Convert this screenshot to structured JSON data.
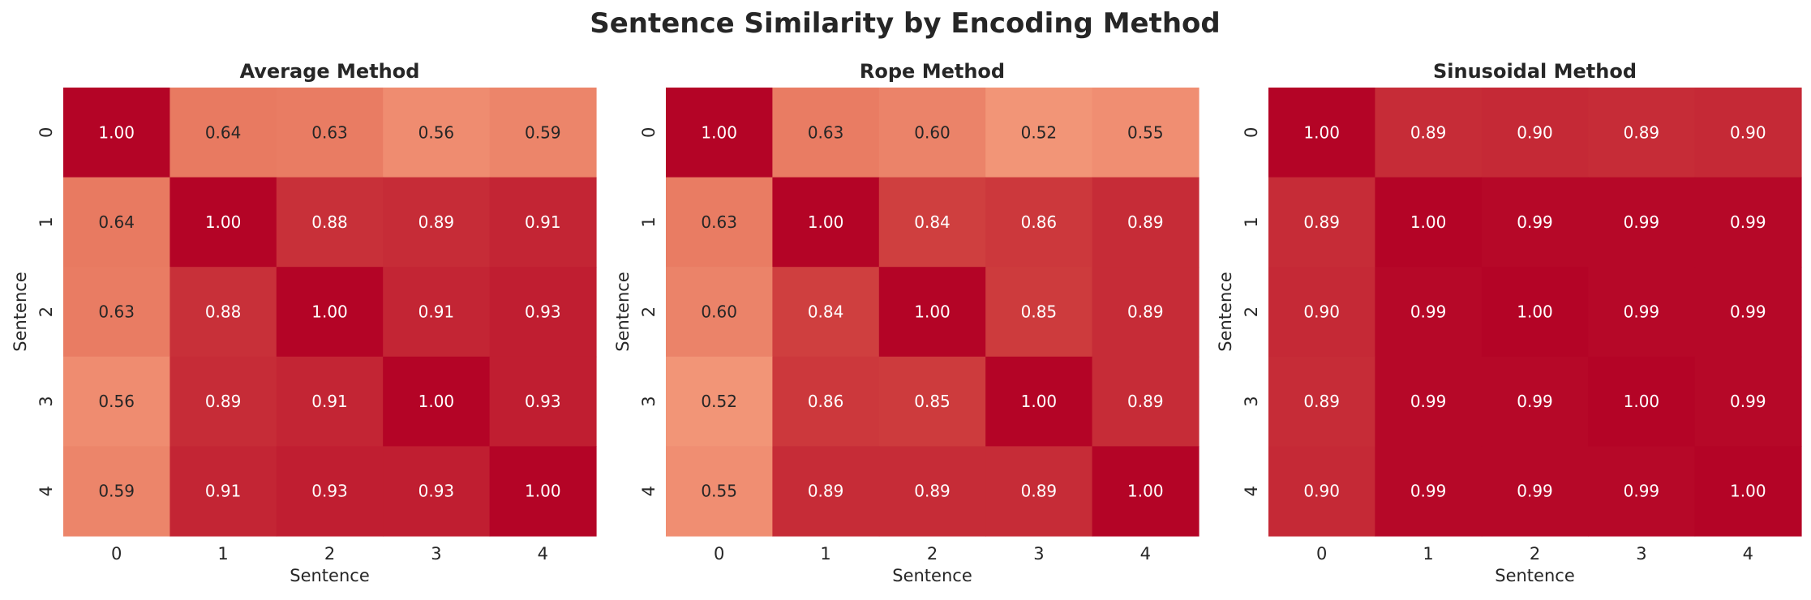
{
  "chart_data": {
    "type": "heatmap",
    "title": "Sentence Similarity by Encoding Method",
    "colormap": "coolwarm",
    "color_range": [
      -1,
      1
    ],
    "colorbar": false,
    "panels": [
      {
        "title": "Average Method",
        "xlabel": "Sentence",
        "ylabel": "Sentence",
        "x_ticks": [
          "0",
          "1",
          "2",
          "3",
          "4"
        ],
        "y_ticks": [
          "0",
          "1",
          "2",
          "3",
          "4"
        ],
        "values": [
          [
            1.0,
            0.64,
            0.63,
            0.56,
            0.59
          ],
          [
            0.64,
            1.0,
            0.88,
            0.89,
            0.91
          ],
          [
            0.63,
            0.88,
            1.0,
            0.91,
            0.93
          ],
          [
            0.56,
            0.89,
            0.91,
            1.0,
            0.93
          ],
          [
            0.59,
            0.91,
            0.93,
            0.93,
            1.0
          ]
        ]
      },
      {
        "title": "Rope Method",
        "xlabel": "Sentence",
        "ylabel": "Sentence",
        "x_ticks": [
          "0",
          "1",
          "2",
          "3",
          "4"
        ],
        "y_ticks": [
          "0",
          "1",
          "2",
          "3",
          "4"
        ],
        "values": [
          [
            1.0,
            0.63,
            0.6,
            0.52,
            0.55
          ],
          [
            0.63,
            1.0,
            0.84,
            0.86,
            0.89
          ],
          [
            0.6,
            0.84,
            1.0,
            0.85,
            0.89
          ],
          [
            0.52,
            0.86,
            0.85,
            1.0,
            0.89
          ],
          [
            0.55,
            0.89,
            0.89,
            0.89,
            1.0
          ]
        ]
      },
      {
        "title": "Sinusoidal Method",
        "xlabel": "Sentence",
        "ylabel": "Sentence",
        "x_ticks": [
          "0",
          "1",
          "2",
          "3",
          "4"
        ],
        "y_ticks": [
          "0",
          "1",
          "2",
          "3",
          "4"
        ],
        "values": [
          [
            1.0,
            0.89,
            0.9,
            0.89,
            0.9
          ],
          [
            0.89,
            1.0,
            0.99,
            0.99,
            0.99
          ],
          [
            0.9,
            0.99,
            1.0,
            0.99,
            0.99
          ],
          [
            0.89,
            0.99,
            0.99,
            1.0,
            0.99
          ],
          [
            0.9,
            0.99,
            0.99,
            0.99,
            1.0
          ]
        ]
      }
    ]
  }
}
